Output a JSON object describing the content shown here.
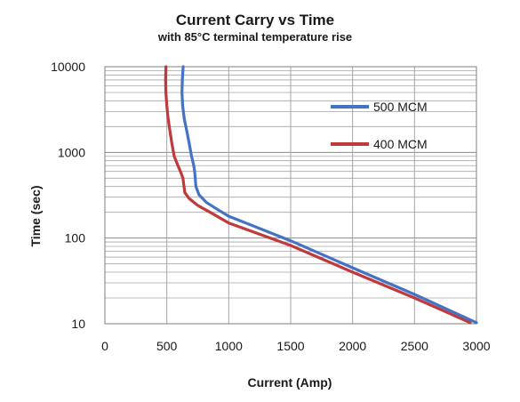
{
  "chart_data": {
    "type": "line",
    "title": "Current Carry vs Time",
    "subtitle": "with 85°C terminal temperature rise",
    "xlabel": "Current (Amp)",
    "ylabel": "Time (sec)",
    "xlim": [
      0,
      3000
    ],
    "ylim": [
      10,
      10000
    ],
    "yscale": "log",
    "x_ticks": [
      "0",
      "500",
      "1000",
      "1500",
      "2000",
      "2500",
      "3000"
    ],
    "y_ticks": [
      "10",
      "100",
      "1000",
      "10000"
    ],
    "grid": true,
    "legend_position": "right",
    "series": [
      {
        "name": "500 MCM",
        "color": "#4472c4",
        "x": [
          632,
          625,
          622,
          628,
          640,
          660,
          680,
          700,
          718,
          725,
          735,
          760,
          820,
          900,
          1000,
          1500,
          2000,
          2500,
          3000
        ],
        "y": [
          10000,
          7000,
          5000,
          3500,
          2500,
          1800,
          1300,
          900,
          700,
          600,
          400,
          320,
          260,
          220,
          180,
          93,
          45,
          22,
          10.3
        ]
      },
      {
        "name": "400 MCM",
        "color": "#c0393b",
        "x": [
          493,
          490,
          492,
          500,
          510,
          525,
          540,
          560,
          590,
          610,
          630,
          645,
          680,
          750,
          850,
          1000,
          1500,
          2000,
          2500,
          2950
        ],
        "y": [
          10000,
          7000,
          5000,
          3500,
          2500,
          1800,
          1300,
          900,
          700,
          600,
          500,
          340,
          290,
          240,
          200,
          150,
          82,
          40,
          20,
          10.3
        ]
      }
    ]
  }
}
